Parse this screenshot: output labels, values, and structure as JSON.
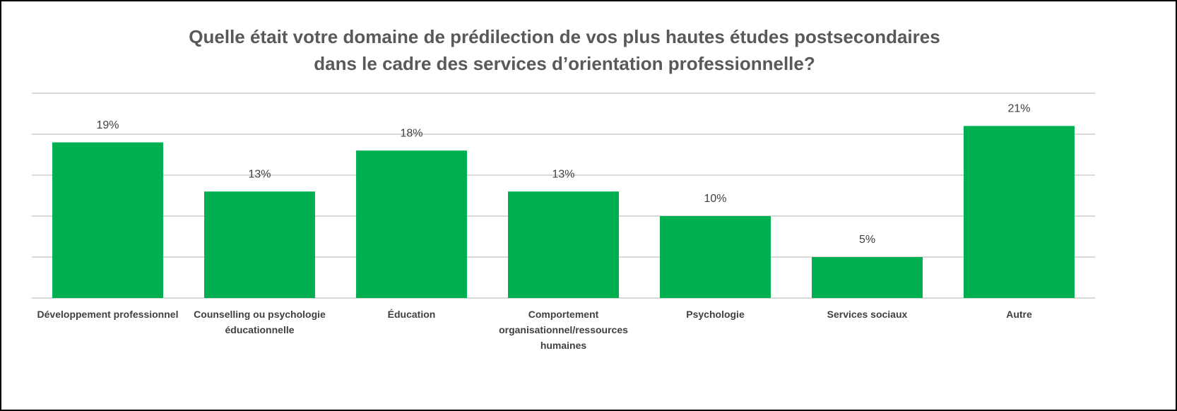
{
  "chart_data": {
    "type": "bar",
    "title": [
      "Quelle était votre domaine de prédilection de vos plus hautes études postsecondaires",
      "dans le cadre des services d’orientation professionnelle?"
    ],
    "categories": [
      "Développement professionnel",
      "Counselling ou psychologie éducationnelle",
      "Éducation",
      "Comportement organisationnel/ressources humaines",
      "Psychologie",
      "Services sociaux",
      "Autre"
    ],
    "values": [
      19,
      13,
      18,
      13,
      10,
      5,
      21
    ],
    "value_labels": [
      "19%",
      "13%",
      "18%",
      "13%",
      "10%",
      "5%",
      "21%"
    ],
    "color": "#00b050",
    "ylim": [
      0,
      25
    ],
    "yticks": [
      0,
      5,
      10,
      15,
      20,
      25
    ],
    "grid": true
  }
}
